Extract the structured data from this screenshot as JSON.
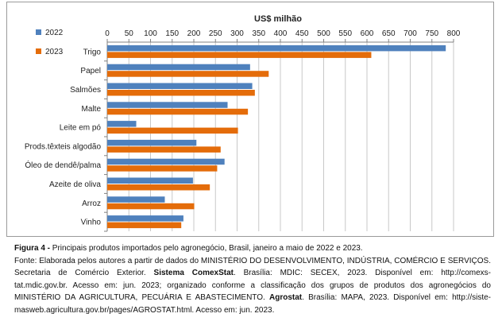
{
  "chart_data": {
    "type": "bar",
    "orientation": "horizontal",
    "title": "US$ milhão",
    "xlim": [
      0,
      800
    ],
    "xticks": [
      0,
      50,
      100,
      150,
      200,
      250,
      300,
      350,
      400,
      450,
      500,
      550,
      600,
      650,
      700,
      750,
      800
    ],
    "grid": true,
    "legend_position": "top-left",
    "categories": [
      "Trigo",
      "Papel",
      "Salmões",
      "Malte",
      "Leite em pó",
      "Prods.têxteis algodão",
      "Óleo de dendê/palma",
      "Azeite de oliva",
      "Arroz",
      "Vinho"
    ],
    "series": [
      {
        "name": "2022",
        "color": "#4f81bd",
        "values": [
          782,
          330,
          335,
          278,
          67,
          206,
          271,
          198,
          133,
          176
        ]
      },
      {
        "name": "2023",
        "color": "#e46c0a",
        "values": [
          610,
          373,
          341,
          325,
          302,
          262,
          254,
          237,
          201,
          171
        ]
      }
    ]
  },
  "caption": {
    "figure_label": "Figura 4 -",
    "figure_text": " Principais produtos importados pelo agronegócio, Brasil, janeiro a maio de 2022 e 2023.",
    "line2": "Fonte: Elaborada pelos autores a partir de dados do MINISTÉRIO DO DESENVOLVIMENTO, INDÚSTRIA, COMÉRCIO E SERVIÇOS.",
    "line3_a": "Secretaria de Comércio Exterior. ",
    "line3_b": "Sistema ComexStat",
    "line3_c": ". Brasília: MDIC: SECEX, 2023. Disponível em: http://comexs-",
    "line4": "tat.mdic.gov.br. Acesso em: jun. 2023; organizado conforme a classificação dos grupos de produtos dos agronegócios do",
    "line5_a": "MINISTÉRIO DA AGRICULTURA, PECUÁRIA E ABASTECIMENTO. ",
    "line5_b": "Agrostat",
    "line5_c": ". Brasília: MAPA, 2023. Disponível em: http://siste-",
    "line6": "masweb.agricultura.gov.br/pages/AGROSTAT.html. Acesso em: jun. 2023."
  }
}
